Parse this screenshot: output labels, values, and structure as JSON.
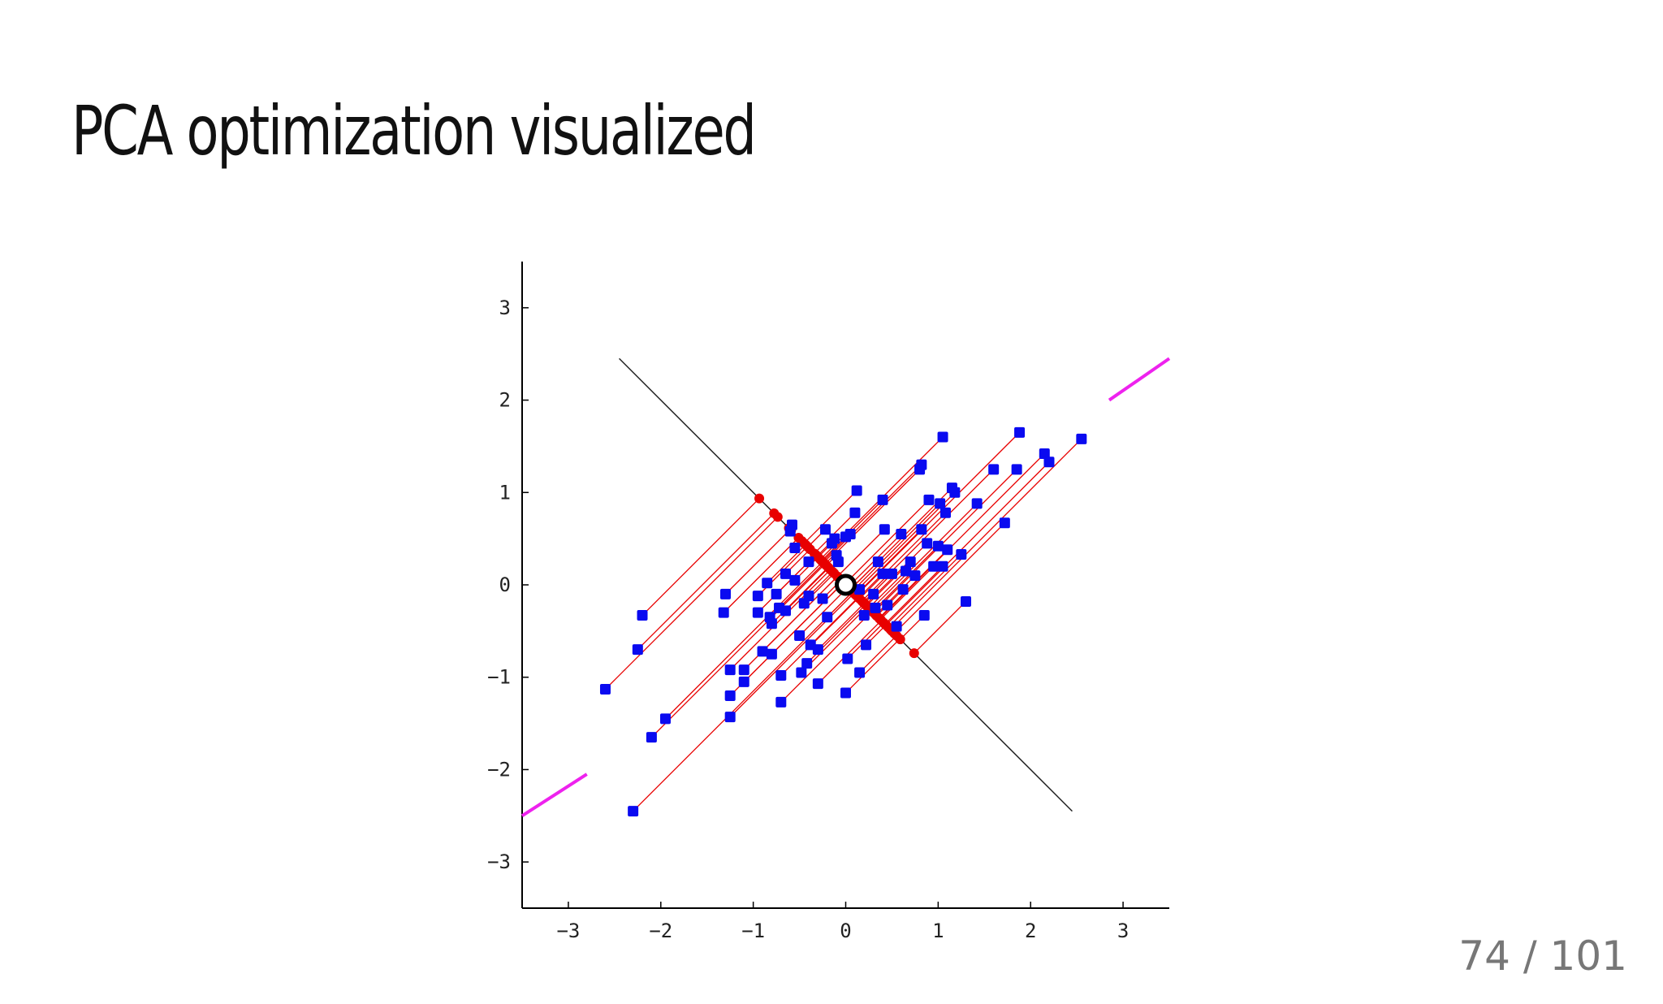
{
  "slide": {
    "title": "PCA optimization visualized",
    "page_counter": "74 / 101"
  },
  "colors": {
    "points": "#0a0af0",
    "projections": "#e80000",
    "principal_axis": "#ee22ee",
    "secondary_axis": "#222222",
    "mean": "#000000"
  },
  "chart_data": {
    "type": "scatter",
    "title": "",
    "xlabel": "",
    "ylabel": "",
    "xlim": [
      -3.5,
      3.5
    ],
    "ylim": [
      -3.5,
      3.5
    ],
    "xticks": [
      -3,
      -2,
      -1,
      0,
      1,
      2,
      3
    ],
    "yticks": [
      3,
      2,
      1,
      0,
      -1,
      -2,
      -3
    ],
    "grid": false,
    "mean": [
      0,
      0
    ],
    "secondary_axis_segment": [
      [
        -2.45,
        2.45
      ],
      [
        2.45,
        -2.45
      ]
    ],
    "principal_axis_segments": [
      [
        [
          -3.5,
          -2.5
        ],
        [
          -2.8,
          -2.05
        ]
      ],
      [
        [
          2.85,
          2.0
        ],
        [
          3.5,
          2.45
        ]
      ]
    ],
    "points": [
      [
        -2.6,
        -1.13
      ],
      [
        -2.2,
        -0.33
      ],
      [
        -2.25,
        -0.7
      ],
      [
        -2.3,
        -2.45
      ],
      [
        -2.1,
        -1.65
      ],
      [
        -1.95,
        -1.45
      ],
      [
        -1.3,
        -0.1
      ],
      [
        -1.32,
        -0.3
      ],
      [
        -1.25,
        -0.92
      ],
      [
        -1.25,
        -1.2
      ],
      [
        -1.25,
        -1.43
      ],
      [
        -1.1,
        -1.05
      ],
      [
        -1.1,
        -0.92
      ],
      [
        -0.95,
        -0.12
      ],
      [
        -0.95,
        -0.3
      ],
      [
        -0.9,
        -0.72
      ],
      [
        -0.85,
        0.02
      ],
      [
        -0.82,
        -0.35
      ],
      [
        -0.8,
        -0.75
      ],
      [
        -0.8,
        -0.42
      ],
      [
        -0.75,
        -0.1
      ],
      [
        -0.72,
        -0.25
      ],
      [
        -0.7,
        -0.98
      ],
      [
        -0.7,
        -1.27
      ],
      [
        -0.65,
        0.12
      ],
      [
        -0.65,
        -0.28
      ],
      [
        -0.6,
        0.58
      ],
      [
        -0.58,
        0.65
      ],
      [
        -0.55,
        0.4
      ],
      [
        -0.55,
        0.05
      ],
      [
        -0.5,
        -0.55
      ],
      [
        -0.48,
        -0.95
      ],
      [
        -0.45,
        -0.2
      ],
      [
        -0.42,
        -0.85
      ],
      [
        -0.4,
        0.25
      ],
      [
        -0.4,
        -0.12
      ],
      [
        -0.38,
        -0.65
      ],
      [
        -0.3,
        -0.7
      ],
      [
        -0.3,
        -1.07
      ],
      [
        -0.25,
        -0.15
      ],
      [
        -0.22,
        0.6
      ],
      [
        -0.2,
        -0.35
      ],
      [
        -0.15,
        0.45
      ],
      [
        -0.12,
        0.5
      ],
      [
        -0.1,
        0.32
      ],
      [
        -0.08,
        0.25
      ],
      [
        0.0,
        0.52
      ],
      [
        0.02,
        -0.8
      ],
      [
        0.05,
        0.55
      ],
      [
        0.0,
        -1.17
      ],
      [
        0.1,
        0.78
      ],
      [
        0.12,
        1.02
      ],
      [
        0.15,
        -0.05
      ],
      [
        0.15,
        -0.95
      ],
      [
        0.2,
        -0.33
      ],
      [
        0.22,
        -0.65
      ],
      [
        0.3,
        -0.1
      ],
      [
        0.32,
        -0.25
      ],
      [
        0.35,
        0.25
      ],
      [
        0.4,
        0.92
      ],
      [
        0.4,
        0.12
      ],
      [
        0.42,
        0.6
      ],
      [
        0.45,
        -0.22
      ],
      [
        0.5,
        0.12
      ],
      [
        0.55,
        -0.45
      ],
      [
        0.6,
        0.55
      ],
      [
        0.62,
        -0.05
      ],
      [
        0.65,
        0.15
      ],
      [
        0.7,
        0.25
      ],
      [
        0.75,
        0.1
      ],
      [
        0.8,
        1.25
      ],
      [
        0.82,
        1.3
      ],
      [
        0.82,
        0.6
      ],
      [
        0.85,
        -0.33
      ],
      [
        0.88,
        0.45
      ],
      [
        0.9,
        0.92
      ],
      [
        0.95,
        0.2
      ],
      [
        1.0,
        0.42
      ],
      [
        1.02,
        0.88
      ],
      [
        1.05,
        1.6
      ],
      [
        1.05,
        0.2
      ],
      [
        1.08,
        0.78
      ],
      [
        1.1,
        0.38
      ],
      [
        1.15,
        1.05
      ],
      [
        1.18,
        1.0
      ],
      [
        1.25,
        0.33
      ],
      [
        1.3,
        -0.18
      ],
      [
        1.42,
        0.88
      ],
      [
        1.6,
        1.25
      ],
      [
        1.72,
        0.67
      ],
      [
        1.85,
        1.25
      ],
      [
        1.88,
        1.65
      ],
      [
        2.15,
        1.42
      ],
      [
        2.2,
        1.33
      ],
      [
        2.55,
        1.58
      ]
    ]
  }
}
